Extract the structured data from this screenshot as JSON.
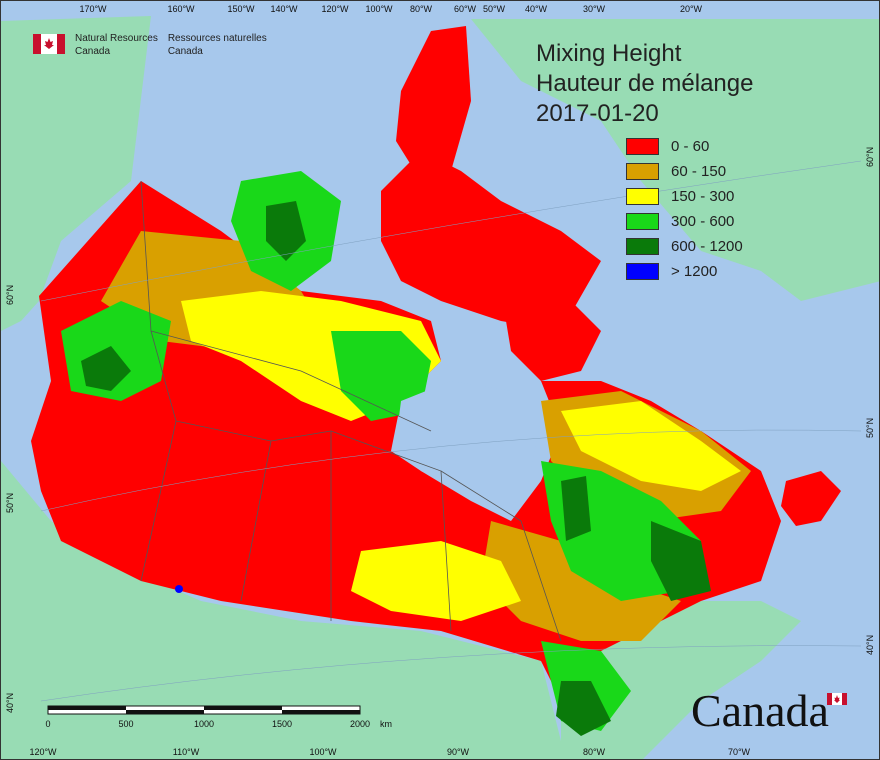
{
  "header": {
    "title_en": "Mixing Height",
    "title_fr": "Hauteur de mélange",
    "date": "2017-01-20"
  },
  "legend": [
    {
      "label": "0 - 60",
      "color": "#ff0000"
    },
    {
      "label": "60 - 150",
      "color": "#d9a000"
    },
    {
      "label": "150 - 300",
      "color": "#ffff00"
    },
    {
      "label": "300 - 600",
      "color": "#19d819"
    },
    {
      "label": "600 - 1200",
      "color": "#0a7a0a"
    },
    {
      "label": "> 1200",
      "color": "#0000ff"
    }
  ],
  "agency": {
    "name_en_1": "Natural Resources",
    "name_en_2": "Canada",
    "name_fr_1": "Ressources naturelles",
    "name_fr_2": "Canada"
  },
  "graticule": {
    "top": [
      "170°W",
      "160°W",
      "150°W",
      "140°W",
      "120°W",
      "100°W",
      "80°W",
      "60°W",
      "50°W",
      "40°W",
      "30°W",
      "20°W"
    ],
    "bottom": [
      "120°W",
      "110°W",
      "100°W",
      "90°W",
      "80°W",
      "70°W"
    ],
    "left": [
      "60°N",
      "50°N",
      "40°N"
    ],
    "right": [
      "60°N",
      "50°N",
      "40°N"
    ]
  },
  "scale": {
    "ticks": [
      "0",
      "500",
      "1000",
      "1500",
      "2000"
    ],
    "unit": "km"
  },
  "wordmark": "Canada",
  "colors": {
    "water": "#a7c8ec",
    "land_other": "#98dcb4",
    "boundary": "#555555"
  }
}
